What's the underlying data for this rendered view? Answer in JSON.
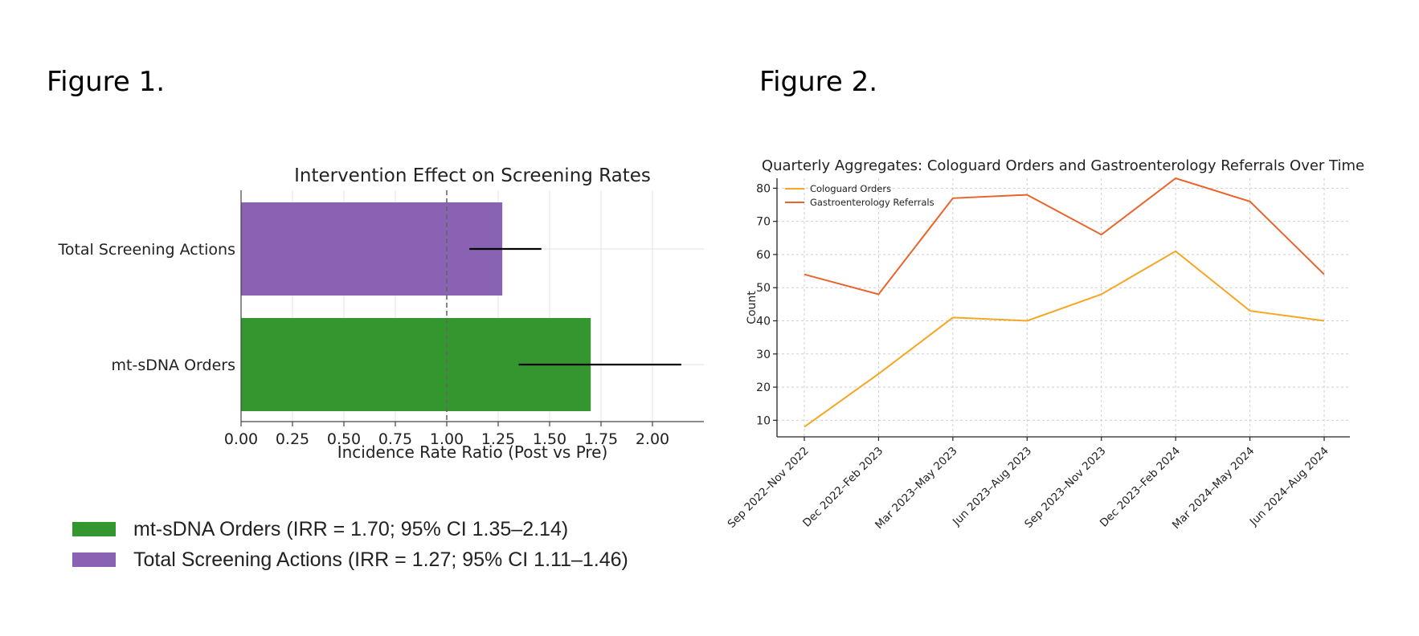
{
  "figures": {
    "fig1_label": "Figure 1.",
    "fig2_label": "Figure 2."
  },
  "legend1": [
    {
      "text": "mt-sDNA Orders (IRR = 1.70; 95% CI 1.35–2.14)",
      "color": "#33962f"
    },
    {
      "text": "Total Screening Actions (IRR = 1.27; 95% CI 1.11–1.46)",
      "color": "#8a62b4"
    }
  ],
  "chart_data": [
    {
      "type": "bar",
      "orientation": "horizontal",
      "title": "Intervention Effect on Screening Rates",
      "xlabel": "Incidence Rate Ratio (Post vs Pre)",
      "ylabel": "",
      "categories": [
        "Total Screening Actions",
        "mt-sDNA Orders"
      ],
      "values": [
        1.27,
        1.7
      ],
      "ci_low": [
        1.11,
        1.35
      ],
      "ci_high": [
        1.46,
        2.14
      ],
      "colors": [
        "#8a62b4",
        "#33962f"
      ],
      "reference_line": 1.0,
      "xlim": [
        0,
        2.25
      ],
      "xticks": [
        0.0,
        0.25,
        0.5,
        0.75,
        1.0,
        1.25,
        1.5,
        1.75,
        2.0
      ],
      "xtick_labels": [
        "0.00",
        "0.25",
        "0.50",
        "0.75",
        "1.00",
        "1.25",
        "1.50",
        "1.75",
        "2.00"
      ],
      "grid": true
    },
    {
      "type": "line",
      "title": "Quarterly Aggregates: Cologuard Orders and Gastroenterology Referrals Over Time",
      "xlabel": "",
      "ylabel": "Count",
      "x": [
        "Sep 2022–Nov 2022",
        "Dec 2022–Feb 2023",
        "Mar 2023–May 2023",
        "Jun 2023–Aug 2023",
        "Sep 2023–Nov 2023",
        "Dec 2023–Feb 2024",
        "Mar 2024–May 2024",
        "Jun 2024–Aug 2024"
      ],
      "series": [
        {
          "name": "Cologuard Orders",
          "values": [
            8,
            24,
            41,
            40,
            48,
            61,
            43,
            40
          ],
          "color": "#f5a623"
        },
        {
          "name": "Gastroenterology Referrals",
          "values": [
            54,
            48,
            77,
            78,
            66,
            83,
            76,
            54
          ],
          "color": "#e8642b"
        }
      ],
      "ylim": [
        5,
        83
      ],
      "yticks": [
        10,
        20,
        30,
        40,
        50,
        60,
        70,
        80
      ],
      "grid": true,
      "legend": "top-left"
    }
  ]
}
